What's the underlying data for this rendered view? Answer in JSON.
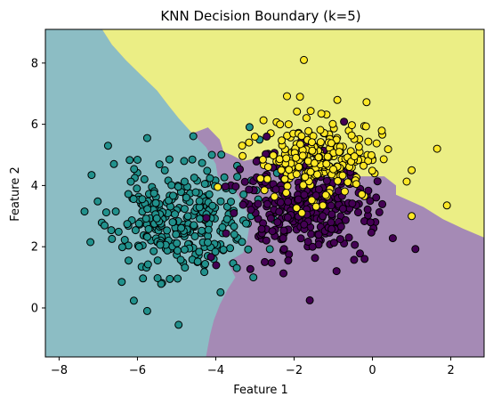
{
  "chart_data": {
    "type": "scatter",
    "title": "KNN Decision Boundary (k=5)",
    "xlabel": "Feature 1",
    "ylabel": "Feature 2",
    "xlim": [
      -8.35,
      2.85
    ],
    "ylim": [
      -1.6,
      9.1
    ],
    "xticks": [
      -8,
      -6,
      -4,
      -2,
      0,
      2
    ],
    "yticks": [
      0,
      2,
      4,
      6,
      8
    ],
    "grid": false,
    "region_colors": {
      "class0": "#a58ab5",
      "class1": "#8cbdc4",
      "class2": "#ebee85"
    },
    "point_colors": {
      "class0": "#440154",
      "class1": "#21918c",
      "class2": "#fde725"
    },
    "edge_color": "#000000",
    "clusters": [
      {
        "class": "class1",
        "center": [
          -4.9,
          2.8
        ],
        "spread": [
          0.85,
          0.9
        ],
        "count": 290,
        "seed": 11
      },
      {
        "class": "class0",
        "center": [
          -1.8,
          3.3
        ],
        "spread": [
          0.85,
          0.85
        ],
        "count": 300,
        "seed": 23
      },
      {
        "class": "class2",
        "center": [
          -1.3,
          4.9
        ],
        "spread": [
          0.75,
          0.65
        ],
        "count": 230,
        "seed": 37
      }
    ],
    "extra_points": [
      {
        "class": "class2",
        "x": -1.75,
        "y": 8.1
      },
      {
        "class": "class2",
        "x": -1.85,
        "y": 6.9
      },
      {
        "class": "class2",
        "x": 1.65,
        "y": 5.2
      },
      {
        "class": "class2",
        "x": 1.9,
        "y": 3.35
      },
      {
        "class": "class2",
        "x": 1.0,
        "y": 3.0
      },
      {
        "class": "class2",
        "x": -3.95,
        "y": 3.95
      },
      {
        "class": "class2",
        "x": 1.0,
        "y": 4.5
      },
      {
        "class": "class1",
        "x": -4.95,
        "y": -0.55
      },
      {
        "class": "class1",
        "x": -5.75,
        "y": -0.1
      },
      {
        "class": "class1",
        "x": -7.35,
        "y": 3.15
      },
      {
        "class": "class1",
        "x": -7.2,
        "y": 2.15
      },
      {
        "class": "class1",
        "x": -6.75,
        "y": 5.3
      },
      {
        "class": "class1",
        "x": -5.75,
        "y": 5.55
      },
      {
        "class": "class1",
        "x": -4.1,
        "y": 5.0
      },
      {
        "class": "class1",
        "x": -4.6,
        "y": 4.85
      },
      {
        "class": "class1",
        "x": -6.6,
        "y": 4.7
      },
      {
        "class": "class1",
        "x": -6.4,
        "y": 0.85
      },
      {
        "class": "class0",
        "x": -1.6,
        "y": 0.25
      },
      {
        "class": "class0",
        "x": -2.75,
        "y": 1.5
      },
      {
        "class": "class0",
        "x": -2.15,
        "y": 1.55
      },
      {
        "class": "class0",
        "x": -0.2,
        "y": 1.6
      },
      {
        "class": "class0",
        "x": -0.05,
        "y": 2.8
      },
      {
        "class": "class0",
        "x": -0.6,
        "y": 2.3
      },
      {
        "class": "class0",
        "x": -2.7,
        "y": 5.6
      }
    ],
    "boundary_class1": [
      [
        -8.35,
        9.1
      ],
      [
        -6.9,
        9.1
      ],
      [
        -6.65,
        8.6
      ],
      [
        -6.3,
        8.1
      ],
      [
        -5.9,
        7.6
      ],
      [
        -5.5,
        7.1
      ],
      [
        -5.2,
        6.6
      ],
      [
        -4.95,
        6.2
      ],
      [
        -4.6,
        5.7
      ],
      [
        -4.25,
        5.25
      ],
      [
        -4.0,
        4.7
      ],
      [
        -3.95,
        4.3
      ],
      [
        -3.6,
        4.05
      ],
      [
        -3.4,
        3.6
      ],
      [
        -3.2,
        3.1
      ],
      [
        -3.15,
        2.6
      ],
      [
        -3.2,
        2.2
      ],
      [
        -3.3,
        1.8
      ],
      [
        -3.7,
        1.5
      ],
      [
        -3.5,
        1.0
      ],
      [
        -3.7,
        0.6
      ],
      [
        -3.9,
        0.1
      ],
      [
        -4.05,
        -0.4
      ],
      [
        -4.15,
        -0.9
      ],
      [
        -4.25,
        -1.6
      ],
      [
        -8.35,
        -1.6
      ]
    ],
    "boundary_class2": [
      [
        -6.9,
        9.1
      ],
      [
        2.85,
        9.1
      ],
      [
        2.85,
        2.3
      ],
      [
        2.3,
        2.6
      ],
      [
        1.8,
        2.9
      ],
      [
        1.3,
        3.3
      ],
      [
        0.6,
        3.7
      ],
      [
        0.6,
        4.0
      ],
      [
        0.3,
        4.3
      ],
      [
        -0.5,
        4.3
      ],
      [
        -0.9,
        4.5
      ],
      [
        -1.3,
        4.4
      ],
      [
        -1.9,
        4.5
      ],
      [
        -2.3,
        4.6
      ],
      [
        -2.6,
        4.7
      ],
      [
        -2.9,
        4.9
      ],
      [
        -3.3,
        4.8
      ],
      [
        -3.6,
        5.0
      ],
      [
        -3.8,
        5.1
      ],
      [
        -3.9,
        5.5
      ],
      [
        -4.2,
        5.9
      ],
      [
        -4.6,
        5.7
      ],
      [
        -4.95,
        6.2
      ],
      [
        -5.2,
        6.6
      ],
      [
        -5.5,
        7.1
      ],
      [
        -5.9,
        7.6
      ],
      [
        -6.3,
        8.1
      ],
      [
        -6.65,
        8.6
      ]
    ]
  }
}
